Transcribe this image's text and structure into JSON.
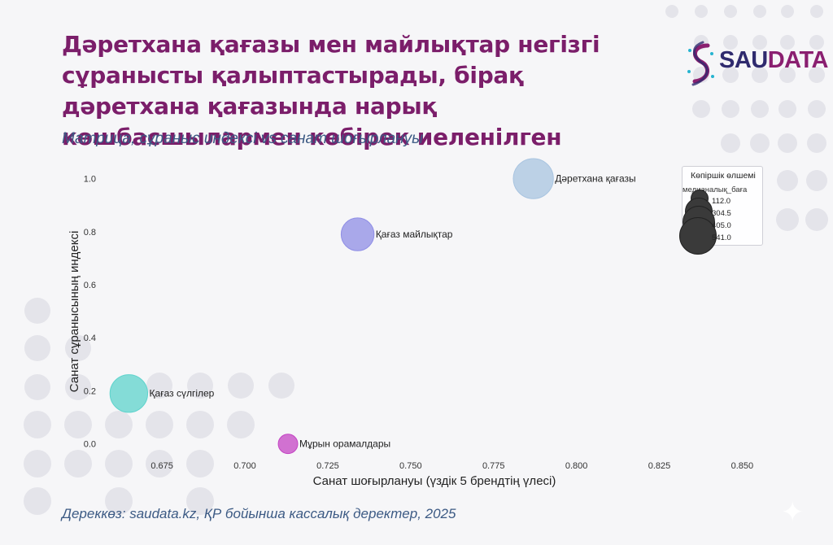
{
  "header": {
    "title": "Дәретхана қағазы мен майлықтар негізгі сұранысты қалыптастырады, бірақ дәретхана қағазында нарық көшбасшылармен көбірек иеленілген",
    "subtitle": "Матрица, сұраныс индексі vs санат шоғырлануы"
  },
  "footer": {
    "source": "Дереккөз: saudata.kz, ҚР бойынша кассалық деректер, 2025"
  },
  "logo": {
    "part1": "SAU",
    "part2": "DATA",
    "colors": [
      "#2f2a6e",
      "#8a1f70"
    ]
  },
  "chart_data": {
    "type": "scatter",
    "xlabel": "Санат шоғырлануы (үздік 5 брендтің үлесі)",
    "ylabel": "Санат сұранысының индексі",
    "xlim": [
      0.66,
      0.858
    ],
    "ylim": [
      -0.05,
      1.06
    ],
    "xticks": [
      "0.675",
      "0.700",
      "0.725",
      "0.750",
      "0.775",
      "0.800",
      "0.825",
      "0.850"
    ],
    "yticks": [
      "0.0",
      "0.2",
      "0.4",
      "0.6",
      "0.8",
      "1.0"
    ],
    "grid": false,
    "points": [
      {
        "label": "Дәретхана қағазы",
        "x": 0.787,
        "y": 1.0,
        "size": 475,
        "color": "#a8c4e0"
      },
      {
        "label": "Қағаз майлықтар",
        "x": 0.734,
        "y": 0.79,
        "size": 320,
        "color": "#8f8ee6"
      },
      {
        "label": "Қағаз сүлгілер",
        "x": 0.665,
        "y": 0.19,
        "size": 420,
        "color": "#5ed3cc"
      },
      {
        "label": "Мұрын орамалдары",
        "x": 0.713,
        "y": 0.0,
        "size": 112,
        "color": "#c444c4"
      }
    ],
    "legend": {
      "title": "Көпіршік өлшемі",
      "subtitle": "медианалық_баға",
      "position": "top-right",
      "entries": [
        "112.0",
        "304.5",
        "405.0",
        "541.0"
      ]
    }
  }
}
